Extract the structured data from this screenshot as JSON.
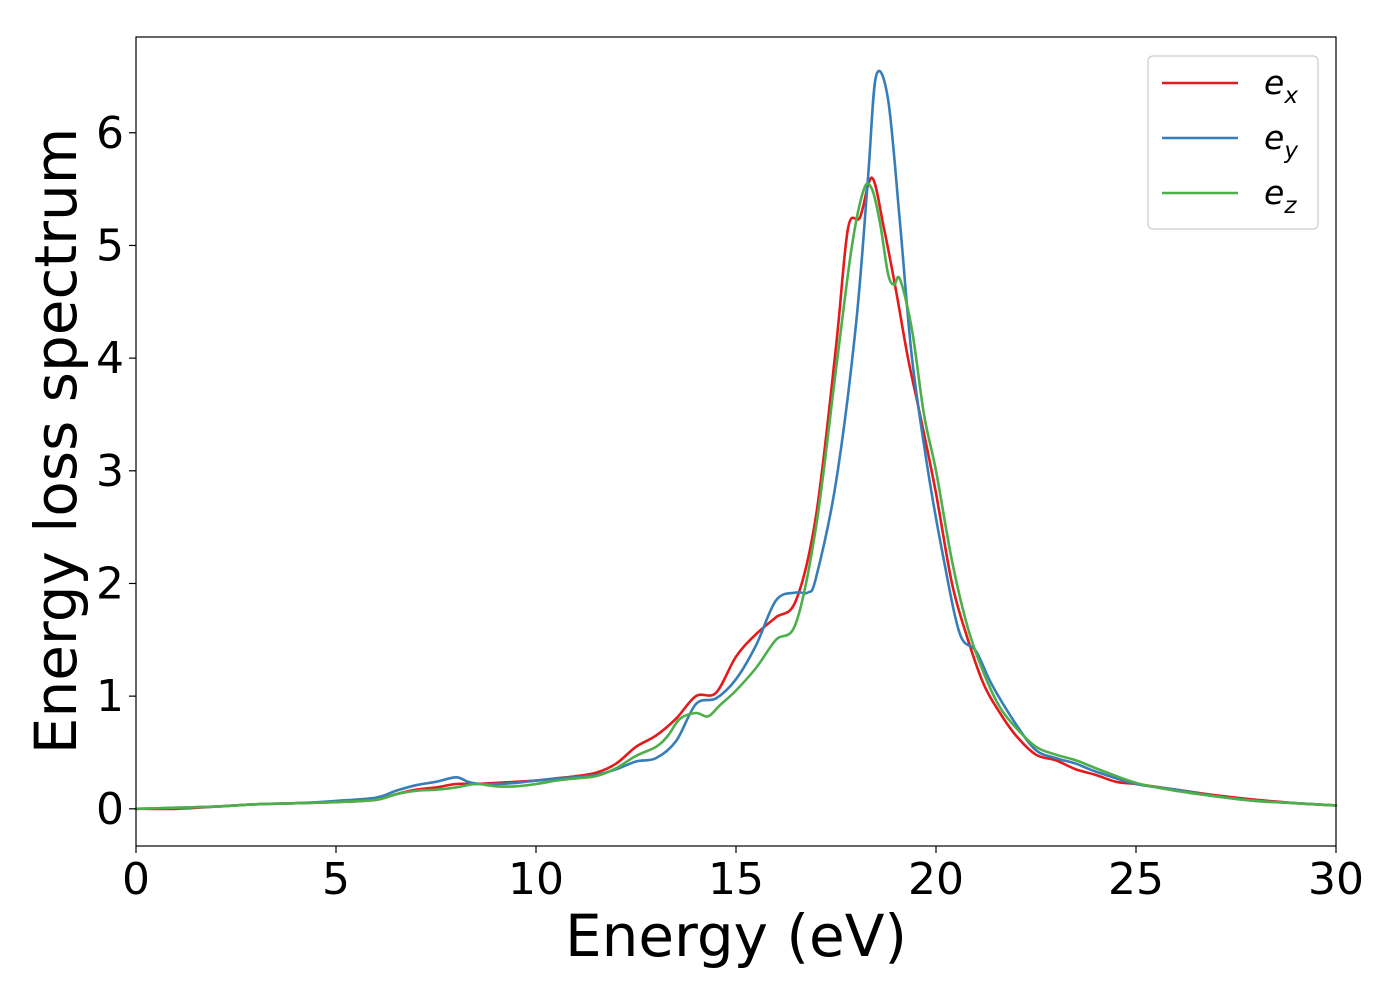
{
  "chart_data": {
    "type": "line",
    "title": "",
    "xlabel": "Energy (eV)",
    "ylabel": "Energy loss spectrum",
    "xlim": [
      0,
      30
    ],
    "ylim": [
      -0.33,
      6.85
    ],
    "xticks": [
      0,
      5,
      10,
      15,
      20,
      25,
      30
    ],
    "yticks": [
      0,
      1,
      2,
      3,
      4,
      5,
      6
    ],
    "grid": false,
    "legend_position": "top-right",
    "series": [
      {
        "name_symbol": "e",
        "name_subscript": "x",
        "color": "#e41a1c",
        "x": [
          0,
          1,
          2,
          3,
          4,
          5,
          6,
          6.5,
          7,
          7.5,
          8,
          8.5,
          9,
          9.5,
          10,
          10.5,
          11,
          11.5,
          12,
          12.5,
          13,
          13.5,
          14,
          14.5,
          15,
          15.5,
          16,
          16.5,
          17,
          17.5,
          17.8,
          18.1,
          18.4,
          18.7,
          19,
          19.3,
          19.6,
          20,
          20.4,
          20.8,
          21.2,
          21.6,
          22,
          22.5,
          23,
          23.5,
          24,
          24.5,
          25,
          26,
          27,
          28,
          29,
          30
        ],
        "y": [
          0,
          0,
          0.02,
          0.04,
          0.05,
          0.06,
          0.08,
          0.13,
          0.17,
          0.19,
          0.22,
          0.22,
          0.23,
          0.24,
          0.25,
          0.27,
          0.29,
          0.32,
          0.4,
          0.55,
          0.65,
          0.8,
          1.0,
          1.03,
          1.35,
          1.55,
          1.7,
          1.85,
          2.6,
          4.1,
          5.15,
          5.25,
          5.6,
          5.15,
          4.6,
          4.0,
          3.5,
          2.8,
          2.0,
          1.5,
          1.1,
          0.85,
          0.65,
          0.48,
          0.43,
          0.35,
          0.3,
          0.24,
          0.22,
          0.17,
          0.12,
          0.08,
          0.05,
          0.03
        ]
      },
      {
        "name_symbol": "e",
        "name_subscript": "y",
        "color": "#377eb8",
        "x": [
          0,
          1,
          2,
          3,
          4,
          5,
          6,
          6.5,
          7,
          7.5,
          8,
          8.3,
          8.6,
          9,
          9.5,
          10,
          10.5,
          11,
          11.5,
          12,
          12.5,
          13,
          13.5,
          14,
          14.5,
          15,
          15.5,
          16,
          16.5,
          16.8,
          17,
          17.5,
          18,
          18.3,
          18.5,
          18.8,
          19.1,
          19.4,
          19.8,
          20.2,
          20.6,
          21,
          21.4,
          22,
          22.5,
          23,
          23.5,
          24,
          25,
          26,
          27,
          28,
          29,
          30
        ],
        "y": [
          0,
          0.01,
          0.02,
          0.04,
          0.05,
          0.07,
          0.1,
          0.16,
          0.21,
          0.24,
          0.28,
          0.24,
          0.22,
          0.22,
          0.23,
          0.25,
          0.27,
          0.28,
          0.3,
          0.35,
          0.42,
          0.45,
          0.6,
          0.93,
          0.98,
          1.15,
          1.45,
          1.85,
          1.92,
          1.92,
          2.05,
          2.9,
          4.3,
          5.6,
          6.5,
          6.3,
          5.2,
          4.0,
          3.0,
          2.2,
          1.55,
          1.4,
          1.1,
          0.75,
          0.52,
          0.45,
          0.4,
          0.33,
          0.22,
          0.17,
          0.11,
          0.07,
          0.05,
          0.03
        ]
      },
      {
        "name_symbol": "e",
        "name_subscript": "z",
        "color": "#4daf4a",
        "x": [
          0,
          1,
          2,
          3,
          4,
          5,
          6,
          6.5,
          7,
          7.5,
          8,
          8.5,
          9,
          9.5,
          10,
          10.5,
          11,
          11.5,
          12,
          12.5,
          13,
          13.3,
          13.6,
          14,
          14.3,
          14.6,
          15,
          15.5,
          16,
          16.5,
          17,
          17.5,
          17.9,
          18.2,
          18.4,
          18.6,
          18.8,
          18.95,
          19.1,
          19.4,
          19.7,
          20,
          20.4,
          20.8,
          21.2,
          21.6,
          22,
          22.5,
          23,
          23.5,
          24,
          25,
          26,
          27,
          28,
          29,
          30
        ],
        "y": [
          0,
          0.01,
          0.02,
          0.04,
          0.05,
          0.06,
          0.08,
          0.13,
          0.16,
          0.17,
          0.19,
          0.22,
          0.2,
          0.2,
          0.22,
          0.25,
          0.27,
          0.29,
          0.36,
          0.47,
          0.55,
          0.65,
          0.8,
          0.85,
          0.82,
          0.92,
          1.05,
          1.25,
          1.5,
          1.65,
          2.5,
          3.9,
          5.0,
          5.5,
          5.5,
          5.2,
          4.75,
          4.65,
          4.7,
          4.25,
          3.5,
          3.0,
          2.2,
          1.6,
          1.2,
          0.9,
          0.72,
          0.55,
          0.48,
          0.43,
          0.36,
          0.23,
          0.16,
          0.11,
          0.07,
          0.05,
          0.03
        ]
      }
    ]
  }
}
